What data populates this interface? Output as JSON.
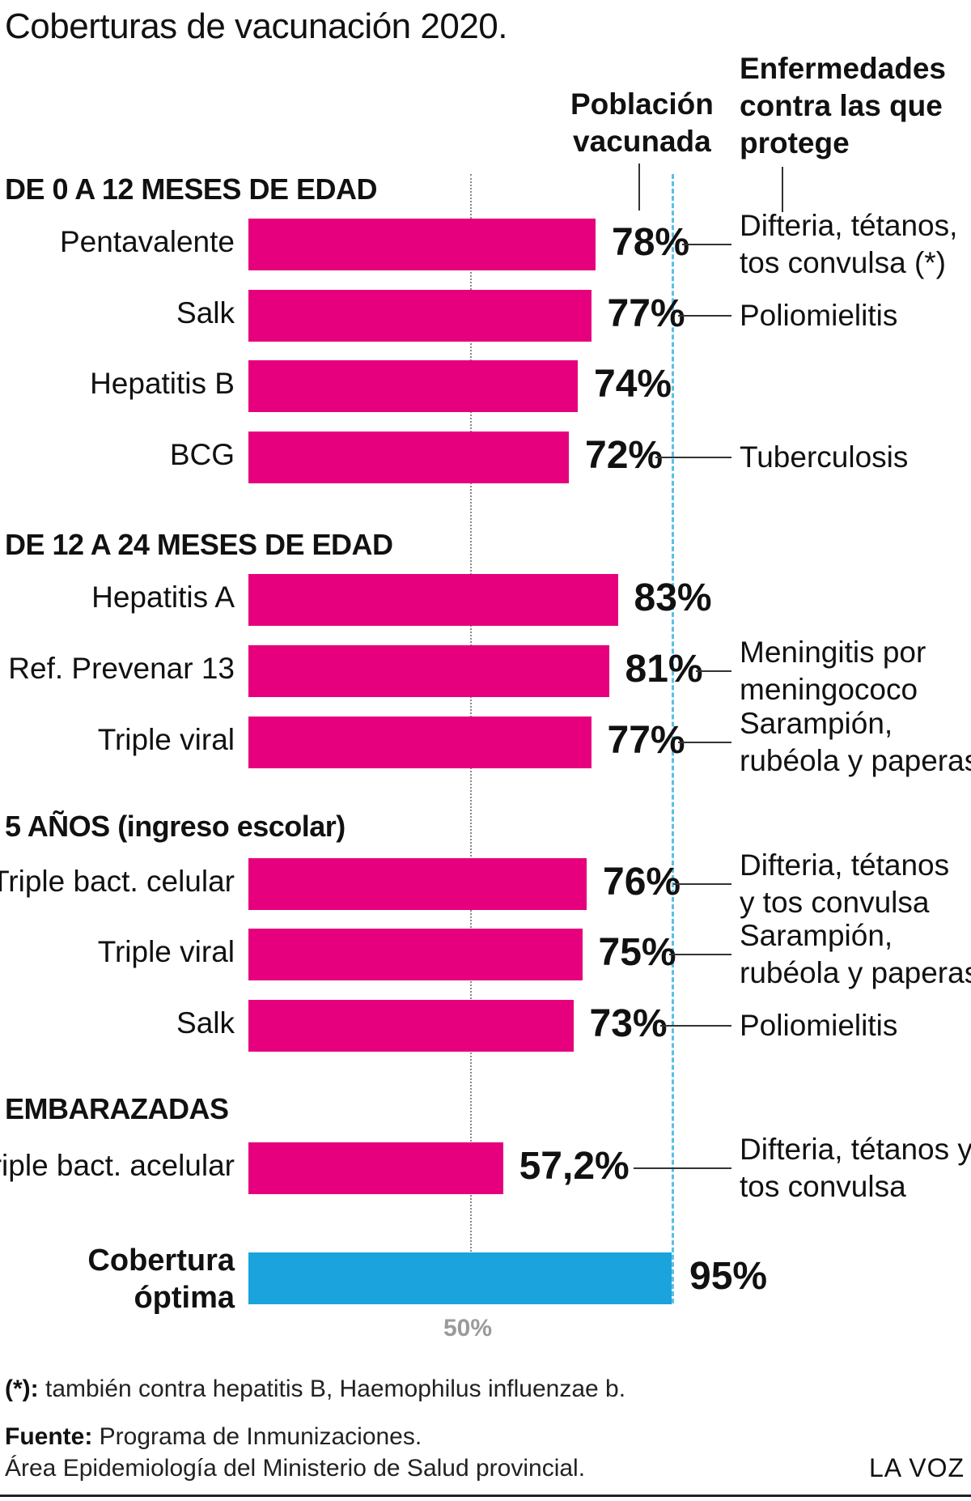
{
  "title": "Coberturas de vacunación 2020.",
  "headers": {
    "population": [
      "Población",
      "vacunada"
    ],
    "diseases": [
      "Enfermedades",
      "contra las que",
      "protege"
    ]
  },
  "colors": {
    "bar": "#e6007e",
    "optimal_bar": "#1aa3dc",
    "optimal_line": "#5bbfe8",
    "half_line": "#888888"
  },
  "chart_data": {
    "type": "bar",
    "orientation": "horizontal",
    "title": "Coberturas de vacunación 2020.",
    "xlim": [
      0,
      100
    ],
    "reference_lines": [
      {
        "label": "50%",
        "value": 50
      },
      {
        "value": 95
      }
    ],
    "groups": [
      {
        "name": "DE 0 A 12 MESES DE EDAD",
        "items": [
          {
            "vaccine": "Pentavalente",
            "value": 78,
            "label": "78%",
            "disease": [
              "Difteria, tétanos,",
              "tos convulsa (*)"
            ]
          },
          {
            "vaccine": "Salk",
            "value": 77,
            "label": "77%",
            "disease": [
              "Poliomielitis"
            ]
          },
          {
            "vaccine": "Hepatitis B",
            "value": 74,
            "label": "74%",
            "disease": []
          },
          {
            "vaccine": "BCG",
            "value": 72,
            "label": "72%",
            "disease": [
              "Tuberculosis"
            ]
          }
        ]
      },
      {
        "name": "DE 12 A 24 MESES DE EDAD",
        "items": [
          {
            "vaccine": "Hepatitis A",
            "value": 83,
            "label": "83%",
            "disease": []
          },
          {
            "vaccine": "Ref. Prevenar 13",
            "value": 81,
            "label": "81%",
            "disease": [
              "Meningitis por",
              "meningococo"
            ]
          },
          {
            "vaccine": "Triple viral",
            "value": 77,
            "label": "77%",
            "disease": [
              "Sarampión,",
              "rubéola y paperas"
            ]
          }
        ]
      },
      {
        "name": "5 AÑOS (ingreso escolar)",
        "items": [
          {
            "vaccine": "Triple bact. celular",
            "value": 76,
            "label": "76%",
            "disease": [
              "Difteria, tétanos",
              "y tos convulsa"
            ]
          },
          {
            "vaccine": "Triple viral",
            "value": 75,
            "label": "75%",
            "disease": [
              "Sarampión,",
              "rubéola y paperas"
            ]
          },
          {
            "vaccine": "Salk",
            "value": 73,
            "label": "73%",
            "disease": [
              "Poliomielitis"
            ]
          }
        ]
      },
      {
        "name": "EMBARAZADAS",
        "items": [
          {
            "vaccine": "Triple bact. acelular",
            "value": 57.2,
            "label": "57,2%",
            "disease": [
              "Difteria, tétanos y",
              "tos convulsa"
            ]
          }
        ]
      }
    ],
    "optimal": {
      "label": [
        "Cobertura",
        "óptima"
      ],
      "value": 95,
      "value_label": "95%"
    }
  },
  "footnotes": {
    "asterisk_key": "(*):",
    "asterisk_text": " también contra hepatitis B, Haemophilus influenzae b.",
    "source_key": "Fuente:",
    "source_text": " Programa de Inmunizaciones.",
    "source_line2": "Área Epidemiología del Ministerio de Salud provincial.",
    "brand": "LA VOZ"
  }
}
